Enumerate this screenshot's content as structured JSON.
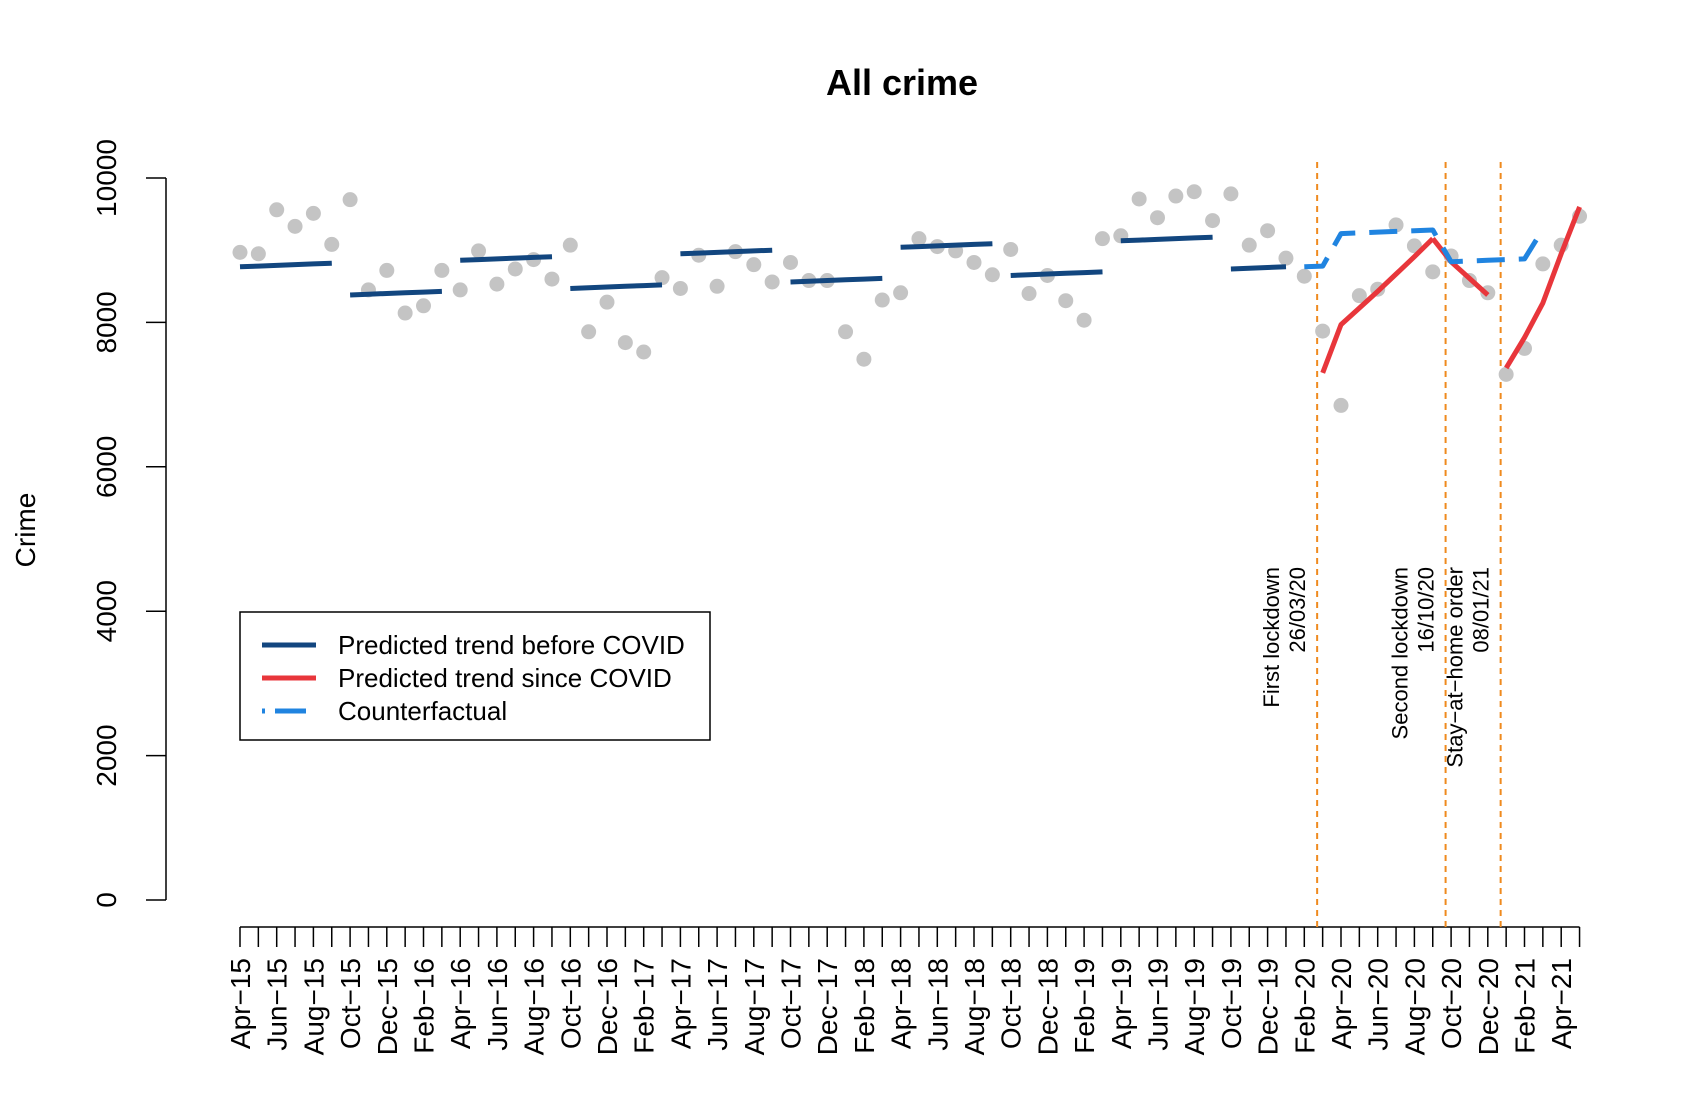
{
  "chart_data": {
    "type": "line",
    "title": "All crime",
    "xlabel": "",
    "ylabel": "Crime",
    "ylim": [
      0,
      10000
    ],
    "yticks": [
      0,
      2000,
      4000,
      6000,
      8000,
      10000
    ],
    "grid": false,
    "legend_position": "left",
    "x_tick_labels": [
      "Apr−15",
      "Jun−15",
      "Aug−15",
      "Oct−15",
      "Dec−15",
      "Feb−16",
      "Apr−16",
      "Jun−16",
      "Aug−16",
      "Oct−16",
      "Dec−16",
      "Feb−17",
      "Apr−17",
      "Jun−17",
      "Aug−17",
      "Oct−17",
      "Dec−17",
      "Feb−18",
      "Apr−18",
      "Jun−18",
      "Aug−18",
      "Oct−18",
      "Dec−18",
      "Feb−19",
      "Apr−19",
      "Jun−19",
      "Aug−19",
      "Oct−19",
      "Dec−19",
      "Feb−20",
      "Apr−20",
      "Jun−20",
      "Aug−20",
      "Oct−20",
      "Dec−20",
      "Feb−21",
      "Apr−21"
    ],
    "series": [
      {
        "name": "Observed",
        "kind": "points",
        "color": "#c4c4c4",
        "values": [
          8970,
          8950,
          9560,
          9330,
          9510,
          9080,
          9700,
          8450,
          8720,
          8130,
          8230,
          8720,
          8450,
          8990,
          8530,
          8740,
          8870,
          8600,
          9070,
          7870,
          8280,
          7720,
          7590,
          8620,
          8470,
          8930,
          8500,
          8980,
          8800,
          8560,
          8830,
          8580,
          8580,
          7870,
          7490,
          8310,
          8410,
          9160,
          9050,
          8990,
          8830,
          8660,
          9010,
          8400,
          8650,
          8300,
          8030,
          9160,
          9200,
          9710,
          9450,
          9750,
          9810,
          9410,
          9780,
          9070,
          9270,
          8890,
          8640,
          7880,
          6850,
          8370,
          8460,
          9350,
          9060,
          8700,
          8920,
          8580,
          8410,
          7280,
          7640,
          8810,
          9070,
          9470
        ]
      },
      {
        "name": "Predicted trend before COVID",
        "kind": "line",
        "color": "#12467f",
        "segments": [
          {
            "start": 0,
            "values": [
              8770,
              8780,
              8790,
              8800,
              8810,
              8820
            ]
          },
          {
            "start": 6,
            "values": [
              8380,
              8390,
              8400,
              8410,
              8420,
              8430
            ]
          },
          {
            "start": 12,
            "values": [
              8860,
              8870,
              8880,
              8890,
              8900,
              8910
            ]
          },
          {
            "start": 18,
            "values": [
              8470,
              8480,
              8490,
              8500,
              8510,
              8520
            ]
          },
          {
            "start": 24,
            "values": [
              8950,
              8960,
              8970,
              8980,
              8990,
              9000
            ]
          },
          {
            "start": 30,
            "values": [
              8560,
              8570,
              8580,
              8590,
              8600,
              8610
            ]
          },
          {
            "start": 36,
            "values": [
              9040,
              9050,
              9060,
              9070,
              9080,
              9090
            ]
          },
          {
            "start": 42,
            "values": [
              8650,
              8660,
              8670,
              8680,
              8690,
              8700
            ]
          },
          {
            "start": 48,
            "values": [
              9130,
              9140,
              9150,
              9160,
              9170,
              9180
            ]
          },
          {
            "start": 54,
            "values": [
              8740,
              8750,
              8760,
              8770
            ]
          }
        ]
      },
      {
        "name": "Predicted trend since COVID",
        "kind": "line",
        "color": "#e8363b",
        "segments": [
          {
            "start": 59,
            "values": [
              7300,
              7970,
              8200,
              8430,
              8670,
              8910,
              9160
            ]
          },
          {
            "start": 65,
            "values": [
              9160,
              8840,
              8610,
              8380
            ]
          },
          {
            "start": 69,
            "values": [
              7370,
              7790,
              8270,
              8950,
              9600
            ]
          }
        ]
      },
      {
        "name": "Counterfactual",
        "kind": "dashed-line",
        "color": "#2084e0",
        "segments": [
          {
            "start": 58,
            "values": [
              8770,
              8780,
              9230,
              9240,
              9250,
              9260,
              9270,
              9280,
              8840,
              8850,
              8860,
              8870,
              8880,
              9290
            ]
          }
        ]
      }
    ],
    "events": [
      {
        "x": 58.7,
        "lines": [
          "First lockdown",
          "26/03/20"
        ],
        "color": "#ef8a1e"
      },
      {
        "x": 65.7,
        "lines": [
          "Second lockdown",
          "16/10/20"
        ],
        "color": "#ef8a1e"
      },
      {
        "x": 68.7,
        "lines": [
          "Stay−at−home order",
          "08/01/21"
        ],
        "color": "#ef8a1e"
      }
    ]
  }
}
